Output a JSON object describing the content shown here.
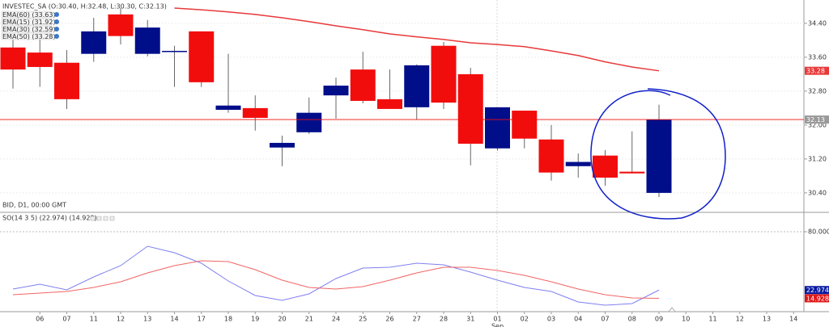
{
  "chart_data": [
    {
      "type": "candlestick",
      "title": "INVESTEC_SA (O:30.40, H:32.48, L:30.30, C:32.13)",
      "subtitle": "BID, D1, 00:00 GMT",
      "up_color": "#000e8a",
      "down_color": "#f20d0d",
      "open": [
        33.83,
        33.71,
        33.47,
        33.68,
        34.61,
        33.68,
        33.73,
        34.21,
        32.36,
        32.4,
        31.47,
        31.83,
        32.7,
        33.31,
        32.61,
        32.42,
        33.87,
        33.2,
        31.45,
        32.34,
        31.66,
        31.03,
        31.28,
        30.9,
        30.4,
        null,
        null,
        null,
        null,
        null
      ],
      "high": [
        34.1,
        34.13,
        33.77,
        34.53,
        34.76,
        34.48,
        33.87,
        34.21,
        33.68,
        32.7,
        31.75,
        32.65,
        33.12,
        33.73,
        33.31,
        33.43,
        33.96,
        33.35,
        32.42,
        32.34,
        32.0,
        31.33,
        31.41,
        31.85,
        32.48,
        null,
        null,
        null,
        null,
        null
      ],
      "low": [
        32.86,
        32.9,
        32.38,
        33.49,
        33.9,
        33.62,
        32.9,
        32.9,
        32.29,
        31.87,
        31.03,
        31.79,
        32.15,
        32.51,
        32.38,
        32.13,
        32.38,
        31.05,
        31.4,
        31.45,
        30.69,
        30.76,
        30.57,
        30.86,
        30.3,
        null,
        null,
        null,
        null,
        null
      ],
      "close": [
        33.31,
        33.37,
        32.61,
        34.21,
        34.1,
        34.3,
        33.75,
        33.01,
        32.46,
        32.17,
        31.58,
        32.29,
        32.93,
        32.57,
        32.38,
        33.41,
        32.53,
        31.56,
        32.42,
        31.68,
        30.88,
        31.13,
        30.76,
        30.86,
        32.13,
        null,
        null,
        null,
        null,
        null
      ],
      "indicators": [
        {
          "name": "EMA(60) (33.63)"
        },
        {
          "name": "EMA(15) (31.92)"
        },
        {
          "name": "EMA(30) (32.59)"
        },
        {
          "name": "EMA(50) (33.28)",
          "color": "#e8393a",
          "values": [
            null,
            null,
            null,
            null,
            null,
            null,
            34.76,
            34.72,
            34.67,
            34.61,
            34.53,
            34.44,
            34.34,
            34.25,
            34.15,
            34.08,
            34.02,
            33.94,
            33.9,
            33.85,
            33.75,
            33.64,
            33.49,
            33.37,
            33.28,
            null,
            null,
            null,
            null,
            null
          ]
        }
      ],
      "ylim": [
        29.96,
        34.95
      ],
      "yticks": [
        {
          "value": 34.4,
          "label": "34.40"
        },
        {
          "value": 33.6,
          "label": "33.60"
        },
        {
          "value": 32.8,
          "label": "32.80"
        },
        {
          "value": 32.0,
          "label": "32.00"
        },
        {
          "value": 31.2,
          "label": "31.20"
        },
        {
          "value": 30.4,
          "label": "30.40"
        }
      ]
    },
    {
      "type": "line",
      "title": "SO(14 3 5) (22.974) (14.928)",
      "categories": [
        null,
        "06",
        "07",
        "11",
        "12",
        "13",
        "14",
        "17",
        "18",
        "19",
        "20",
        "21",
        "24",
        "25",
        "26",
        "27",
        "28",
        "31",
        "01",
        "02",
        "03",
        "04",
        "07",
        "08",
        "09",
        "10",
        "11",
        "12",
        "13",
        "14"
      ],
      "month_label": "Sep",
      "series": [
        {
          "color": "#7f7ff0",
          "values": [
            23.96,
            28.7,
            23.17,
            35.8,
            46.85,
            65.79,
            59.48,
            49.22,
            31.85,
            17.65,
            12.91,
            19.23,
            34.22,
            44.48,
            45.27,
            49.22,
            47.64,
            40.54,
            32.64,
            25.54,
            21.59,
            11.33,
            8.17,
            9.75,
            22.974,
            null,
            null,
            null,
            null,
            null
          ]
        },
        {
          "color": "#f26464",
          "values": [
            18.44,
            20.02,
            21.59,
            25.54,
            31.07,
            39.75,
            46.85,
            51.59,
            50.8,
            42.9,
            32.64,
            25.54,
            23.96,
            26.33,
            32.64,
            39.75,
            45.27,
            45.27,
            42.11,
            37.38,
            31.07,
            23.96,
            18.44,
            15.28,
            14.928,
            null,
            null,
            null,
            null,
            null
          ]
        }
      ],
      "ylim": [
        2.65,
        97.36
      ],
      "yticks": [
        {
          "value": 80,
          "label": "80.000"
        }
      ]
    }
  ]
}
